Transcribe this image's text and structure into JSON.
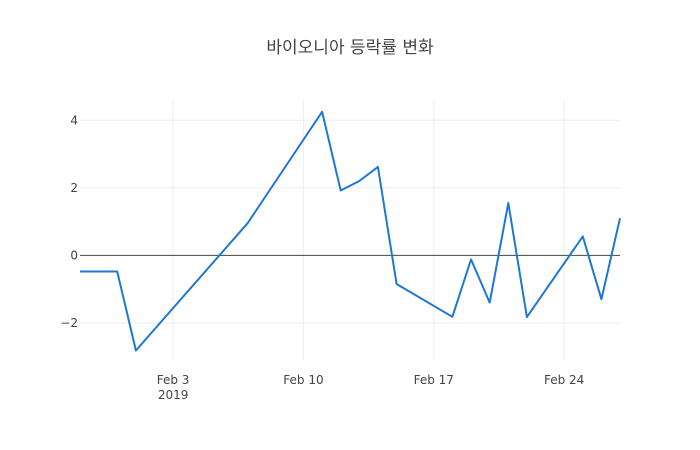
{
  "chart_data": {
    "type": "line",
    "title": "바이오니아 등락률 변화",
    "xlabel": "",
    "ylabel": "",
    "x_range": [
      "2019-01-29",
      "2019-02-27"
    ],
    "y_range": [
      -3.1,
      4.6
    ],
    "x_ticks": [
      {
        "date": "2019-02-03",
        "label": "Feb 3",
        "sublabel": "2019"
      },
      {
        "date": "2019-02-10",
        "label": "Feb 10",
        "sublabel": ""
      },
      {
        "date": "2019-02-17",
        "label": "Feb 17",
        "sublabel": ""
      },
      {
        "date": "2019-02-24",
        "label": "Feb 24",
        "sublabel": ""
      }
    ],
    "y_ticks": [
      {
        "value": -2,
        "label": "−2"
      },
      {
        "value": 0,
        "label": "0"
      },
      {
        "value": 2,
        "label": "2"
      },
      {
        "value": 4,
        "label": "4"
      }
    ],
    "grid": true,
    "series": [
      {
        "color": "#1f77d4",
        "points": [
          {
            "x": "2019-01-29",
            "y": -0.48
          },
          {
            "x": "2019-01-31",
            "y": -0.48
          },
          {
            "x": "2019-02-01",
            "y": -2.82
          },
          {
            "x": "2019-02-07",
            "y": 0.95
          },
          {
            "x": "2019-02-11",
            "y": 4.25
          },
          {
            "x": "2019-02-12",
            "y": 1.92
          },
          {
            "x": "2019-02-13",
            "y": 2.2
          },
          {
            "x": "2019-02-14",
            "y": 2.62
          },
          {
            "x": "2019-02-15",
            "y": -0.85
          },
          {
            "x": "2019-02-18",
            "y": -1.82
          },
          {
            "x": "2019-02-19",
            "y": -0.12
          },
          {
            "x": "2019-02-20",
            "y": -1.4
          },
          {
            "x": "2019-02-21",
            "y": 1.55
          },
          {
            "x": "2019-02-22",
            "y": -1.83
          },
          {
            "x": "2019-02-25",
            "y": 0.56
          },
          {
            "x": "2019-02-26",
            "y": -1.3
          },
          {
            "x": "2019-02-27",
            "y": 1.1
          }
        ]
      }
    ]
  }
}
